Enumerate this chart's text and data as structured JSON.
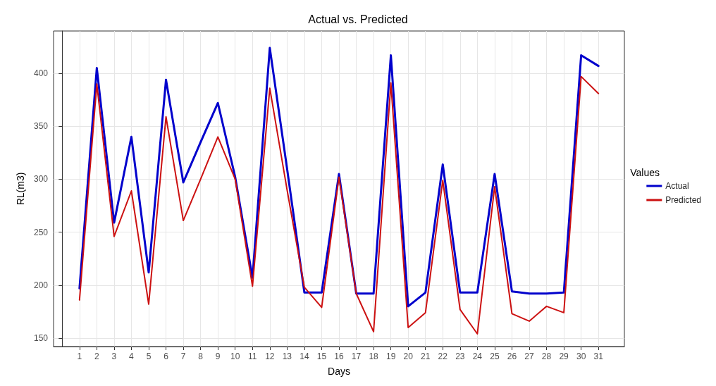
{
  "chart_data": {
    "type": "line",
    "title": "Actual vs. Predicted",
    "xlabel": "Days",
    "ylabel": "RL(m3)",
    "legend_title": "Values",
    "x": [
      1,
      2,
      3,
      4,
      5,
      6,
      7,
      8,
      9,
      10,
      11,
      12,
      13,
      14,
      15,
      16,
      17,
      18,
      19,
      20,
      21,
      22,
      23,
      24,
      25,
      26,
      27,
      28,
      29,
      30,
      31
    ],
    "series": [
      {
        "name": "Actual",
        "color": "#0000cc",
        "values": [
          197,
          405,
          259,
          340,
          212,
          394,
          297,
          335,
          372,
          302,
          207,
          424,
          310,
          193,
          193,
          305,
          192,
          192,
          417,
          180,
          193,
          314,
          193,
          193,
          305,
          194,
          192,
          192,
          193,
          417,
          407
        ]
      },
      {
        "name": "Predicted",
        "color": "#cc1111",
        "values": [
          186,
          390,
          246,
          289,
          182,
          359,
          261,
          300,
          340,
          300,
          199,
          386,
          290,
          198,
          179,
          302,
          192,
          156,
          391,
          160,
          174,
          299,
          177,
          154,
          293,
          173,
          166,
          180,
          174,
          397,
          381
        ]
      }
    ],
    "xlim": [
      -0.5,
      32.5
    ],
    "xticks": [
      1,
      2,
      3,
      4,
      5,
      6,
      7,
      8,
      9,
      10,
      11,
      12,
      13,
      14,
      15,
      16,
      17,
      18,
      19,
      20,
      21,
      22,
      23,
      24,
      25,
      26,
      27,
      28,
      29,
      30,
      31
    ],
    "ylim": [
      142,
      440
    ],
    "yticks": [
      150,
      200,
      250,
      300,
      350,
      400
    ],
    "grid": true,
    "legend": "right",
    "marker": "none",
    "line_style": "solid"
  }
}
